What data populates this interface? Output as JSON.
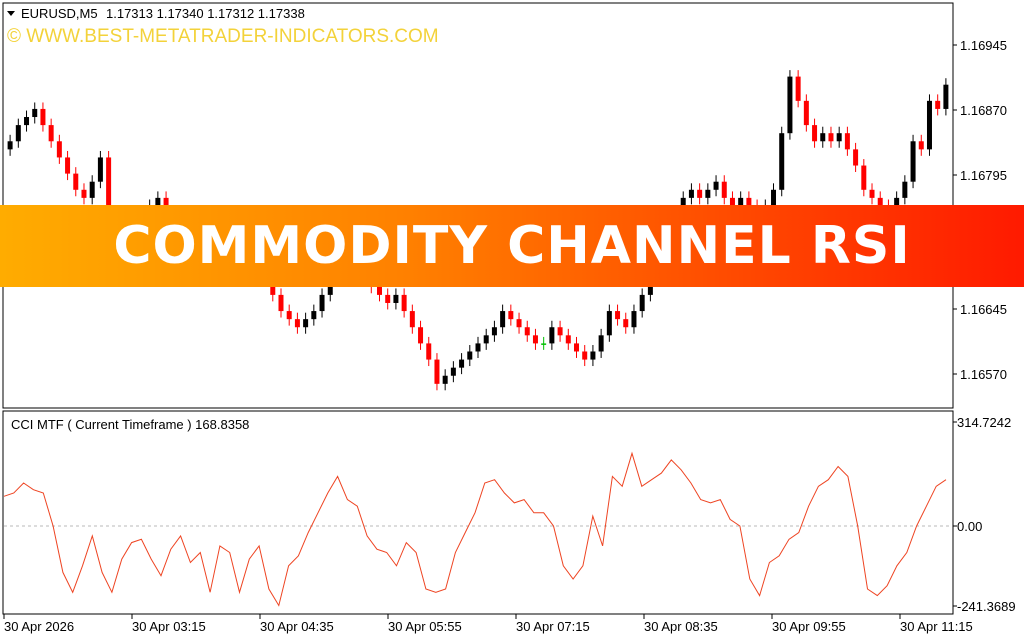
{
  "header": {
    "symbol": "EURUSD,M5",
    "ohlc": "1.17313 1.17340 1.17312 1.17338",
    "watermark": "© WWW.BEST-METATRADER-INDICATORS.COM"
  },
  "banner": {
    "title": "COMMODITY CHANNEL RSI"
  },
  "indicator": {
    "label": "CCI MTF ( Current Timeframe )  168.8358"
  },
  "chart_data": [
    {
      "type": "candlestick",
      "y_ticks": [
        "1.16945",
        "1.16870",
        "1.16795",
        "1.16720",
        "1.16645",
        "1.16570"
      ],
      "x_ticks": [
        "30 Apr 2026",
        "30 Apr 03:15",
        "30 Apr 04:35",
        "30 Apr 05:55",
        "30 Apr 07:15",
        "30 Apr 08:35",
        "30 Apr 09:55",
        "30 Apr 11:15"
      ],
      "ylim": [
        1.1653,
        1.17
      ],
      "close": [
        1.1685,
        1.1687,
        1.1688,
        1.1689,
        1.1687,
        1.1685,
        1.1683,
        1.1681,
        1.1679,
        1.1678,
        1.168,
        1.1683,
        1.1676,
        1.1675,
        1.1676,
        1.1676,
        1.1675,
        1.1677,
        1.1678,
        1.1676,
        1.1675,
        1.1674,
        1.1671,
        1.1673,
        1.1674,
        1.1672,
        1.167,
        1.1669,
        1.1668,
        1.1669,
        1.167,
        1.1668,
        1.1666,
        1.1664,
        1.1663,
        1.1662,
        1.1663,
        1.1664,
        1.1666,
        1.1668,
        1.167,
        1.1671,
        1.167,
        1.1668,
        1.1667,
        1.1666,
        1.1665,
        1.1666,
        1.1664,
        1.1662,
        1.166,
        1.1658,
        1.1655,
        1.1656,
        1.1657,
        1.1658,
        1.1659,
        1.166,
        1.1661,
        1.1662,
        1.1664,
        1.1663,
        1.1662,
        1.1661,
        1.166,
        1.166,
        1.1662,
        1.1661,
        1.166,
        1.1659,
        1.1658,
        1.1659,
        1.1661,
        1.1664,
        1.1663,
        1.1662,
        1.1664,
        1.1666,
        1.1668,
        1.167,
        1.1672,
        1.1675,
        1.1678,
        1.1679,
        1.1678,
        1.1679,
        1.168,
        1.1678,
        1.1677,
        1.1678,
        1.1677,
        1.1676,
        1.1677,
        1.1679,
        1.1686,
        1.1693,
        1.169,
        1.1687,
        1.1685,
        1.1686,
        1.1685,
        1.1686,
        1.1684,
        1.1682,
        1.1679,
        1.1678,
        1.1677,
        1.1676,
        1.1678,
        1.168,
        1.1685,
        1.1684,
        1.169,
        1.1689,
        1.1692
      ],
      "up_color": "#000000",
      "down_color": "#ff0000",
      "doji_color": "#00c000"
    },
    {
      "type": "line",
      "series": [
        {
          "color": "#ee4422"
        }
      ],
      "y_ticks": [
        "314.7242",
        "0.00",
        "-241.3689"
      ],
      "ylim": [
        -241.3689,
        314.7242
      ],
      "values": [
        90,
        100,
        130,
        110,
        100,
        0,
        -140,
        -200,
        -120,
        -30,
        -140,
        -200,
        -100,
        -50,
        -40,
        -100,
        -150,
        -70,
        -30,
        -110,
        -80,
        -200,
        -60,
        -80,
        -200,
        -100,
        -60,
        -190,
        -240,
        -120,
        -90,
        -20,
        40,
        100,
        150,
        80,
        60,
        -30,
        -70,
        -80,
        -120,
        -50,
        -80,
        -190,
        -200,
        -190,
        -80,
        -20,
        40,
        130,
        140,
        100,
        70,
        80,
        40,
        40,
        0,
        -120,
        -160,
        -120,
        30,
        -60,
        150,
        120,
        220,
        120,
        140,
        160,
        200,
        170,
        130,
        80,
        70,
        80,
        20,
        0,
        -160,
        -210,
        -110,
        -90,
        -40,
        -20,
        60,
        120,
        140,
        180,
        150,
        0,
        -190,
        -210,
        -180,
        -120,
        -80,
        0,
        60,
        120,
        140
      ],
      "zero_line": 0
    }
  ]
}
